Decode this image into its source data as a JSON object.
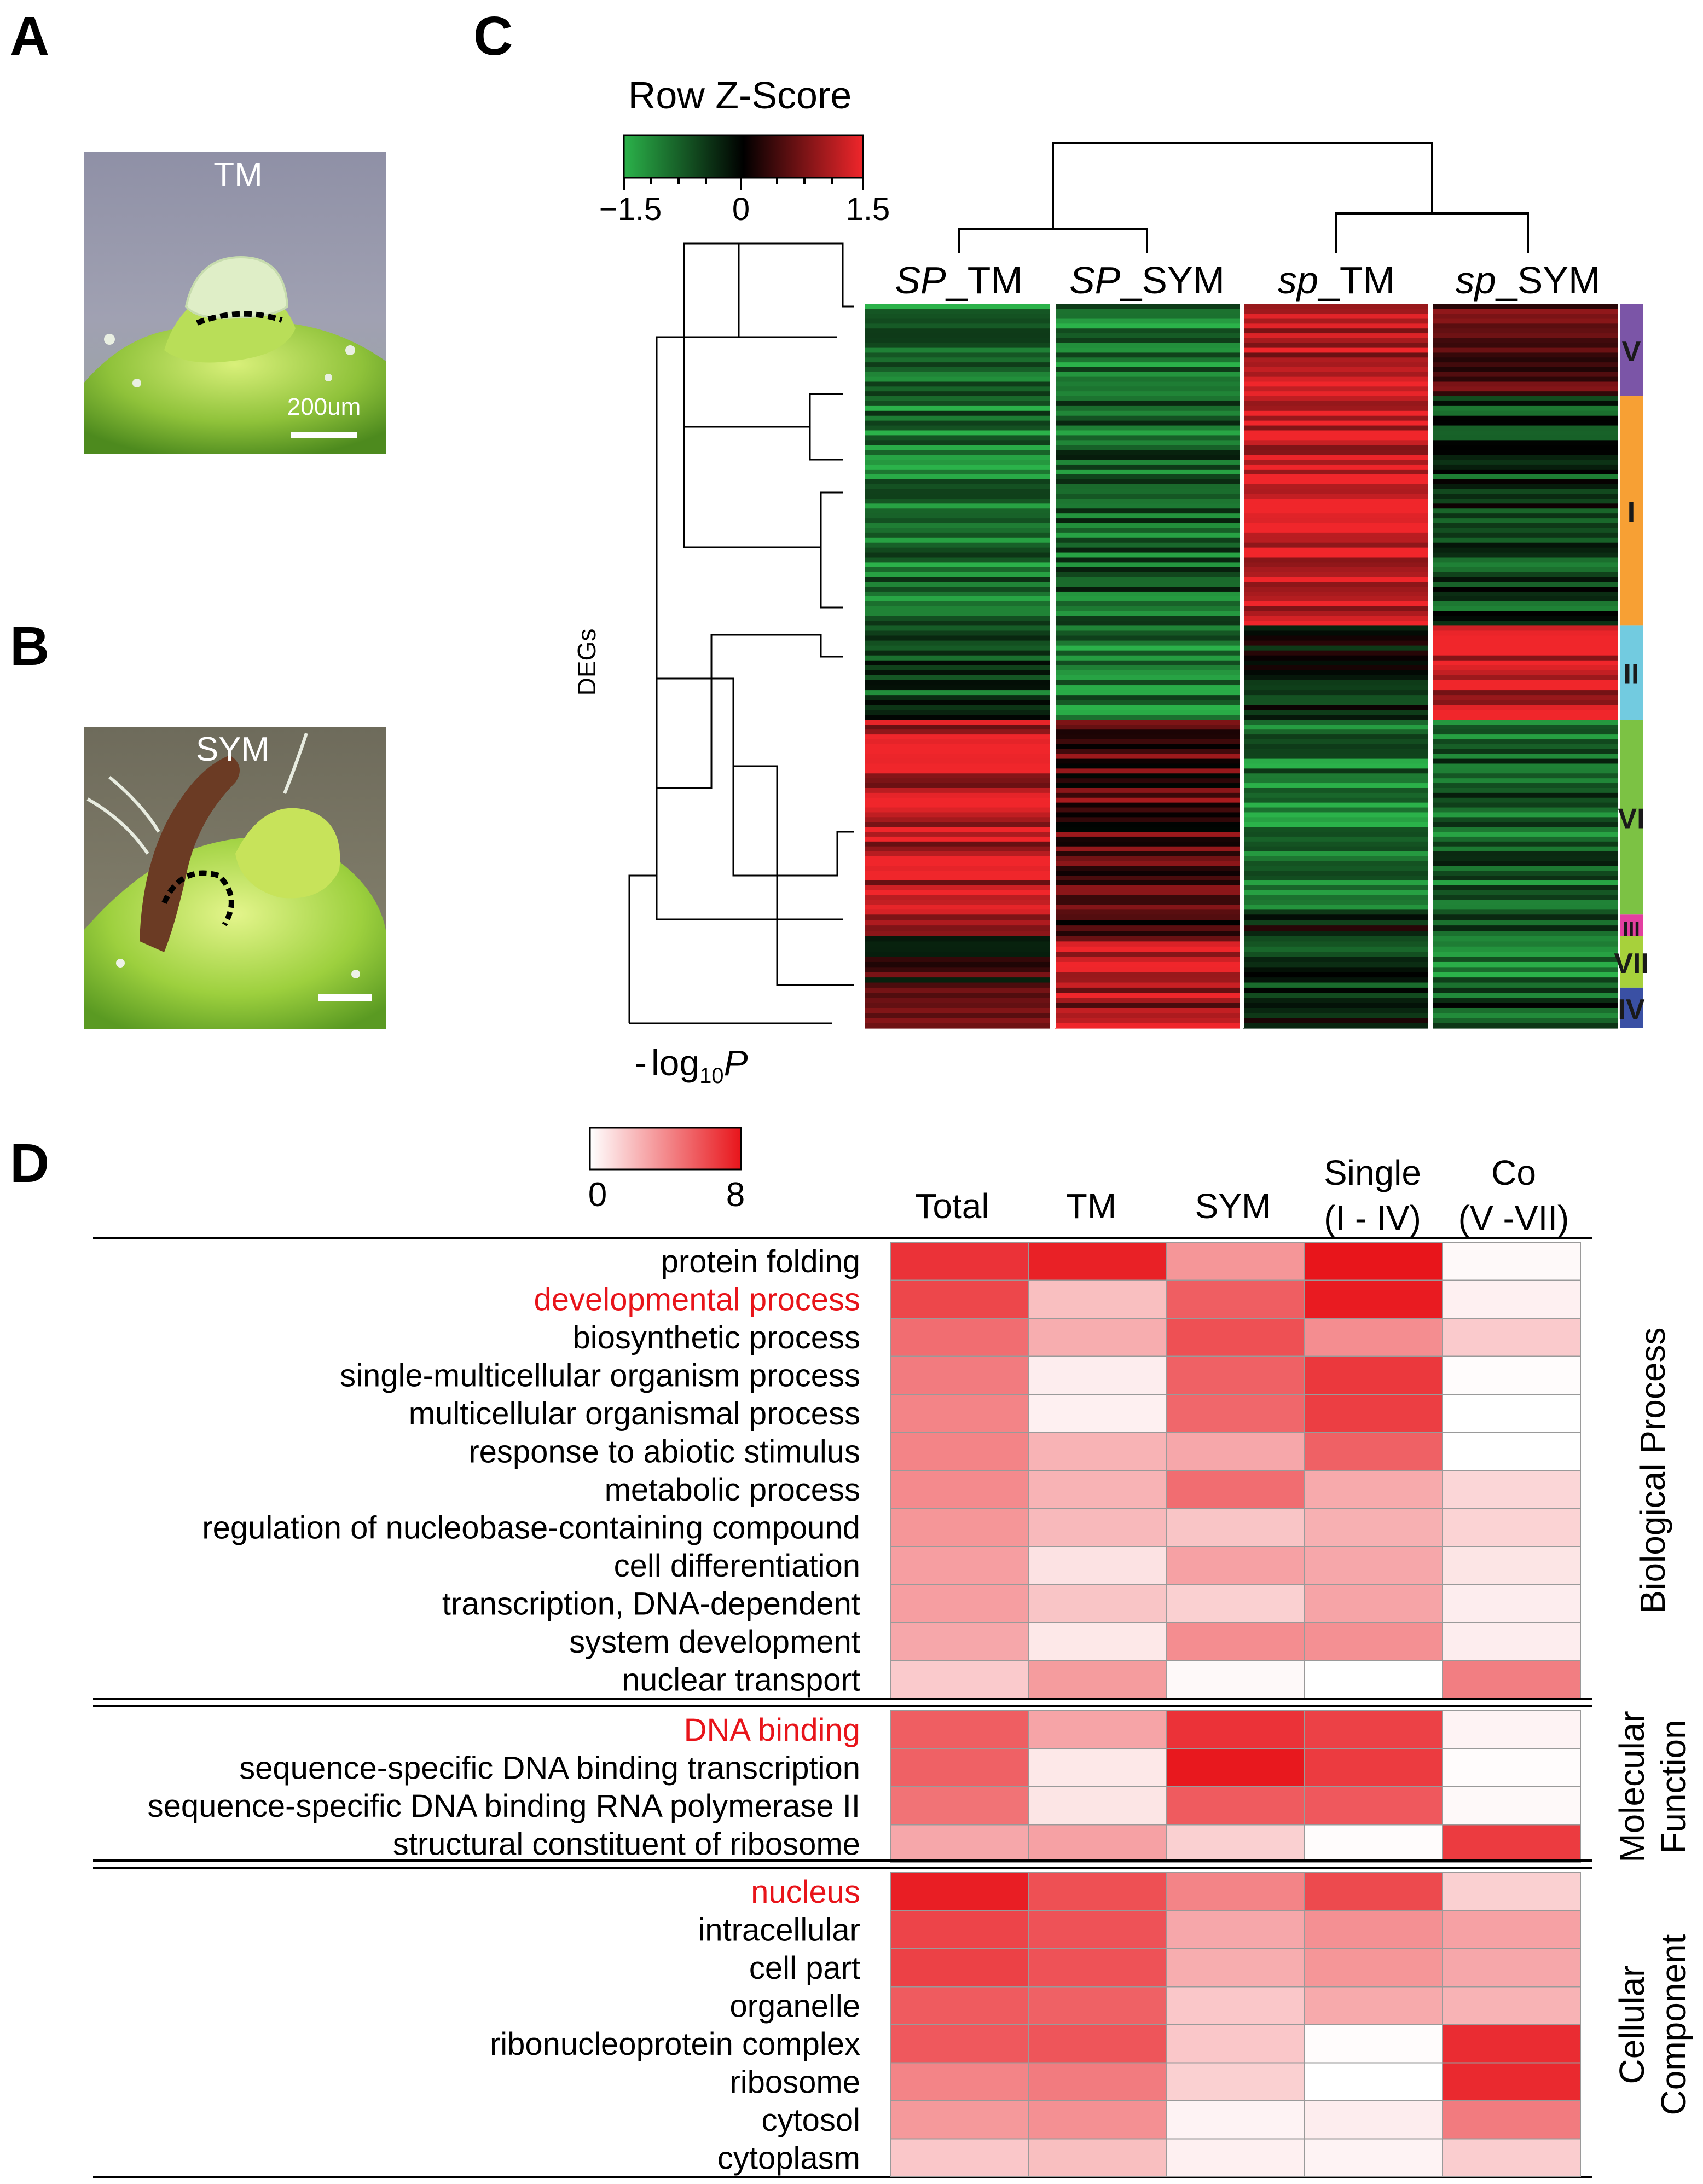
{
  "panel_labels": {
    "a": "A",
    "b": "B",
    "c": "C",
    "d": "D"
  },
  "panel_a": {
    "label": "TM",
    "scale_text": "200um"
  },
  "panel_b": {
    "label": "SYM"
  },
  "panel_c": {
    "colorkey_title": "Row Z-Score",
    "colorkey_ticks": [
      "−1.5",
      "0",
      "1.5"
    ],
    "y_axis_label": "DEGs",
    "columns": [
      {
        "prefix": "SP",
        "suffix": "_TM"
      },
      {
        "prefix": "SP",
        "suffix": "_SYM"
      },
      {
        "prefix": "sp",
        "suffix": "_TM"
      },
      {
        "prefix": "sp",
        "suffix": "_SYM"
      }
    ],
    "clusters": [
      {
        "name": "V",
        "color": "#7b55a7",
        "start": 0.0,
        "end": 0.127
      },
      {
        "name": "I",
        "color": "#f7a034",
        "start": 0.127,
        "end": 0.444
      },
      {
        "name": "II",
        "color": "#72cbe0",
        "start": 0.444,
        "end": 0.574
      },
      {
        "name": "VI",
        "color": "#7cc244",
        "start": 0.574,
        "end": 0.843
      },
      {
        "name": "III",
        "color": "#e33fa0",
        "start": 0.843,
        "end": 0.873
      },
      {
        "name": "VII",
        "color": "#a7d13b",
        "start": 0.873,
        "end": 0.944
      },
      {
        "name": "IV",
        "color": "#3a50a4",
        "start": 0.944,
        "end": 1.0
      }
    ],
    "cluster_zscores": [
      {
        "name": "V",
        "values": [
          -1.0,
          -1.0,
          1.2,
          0.6
        ]
      },
      {
        "name": "I",
        "values": [
          -1.0,
          -0.8,
          1.4,
          -0.5
        ]
      },
      {
        "name": "II",
        "values": [
          -0.6,
          -1.0,
          -0.3,
          1.3
        ]
      },
      {
        "name": "VI",
        "values": [
          1.2,
          0.5,
          -1.0,
          -0.8
        ]
      },
      {
        "name": "III",
        "values": [
          1.0,
          0.4,
          -0.2,
          -0.5
        ]
      },
      {
        "name": "VII",
        "values": [
          0.2,
          1.2,
          -0.6,
          -1.0
        ]
      },
      {
        "name": "IV",
        "values": [
          0.4,
          1.0,
          -0.4,
          -0.6
        ]
      }
    ]
  },
  "chart_data": {
    "type": "heatmap",
    "title": "-log10P",
    "colorbar_min": "0",
    "colorbar_max": "8",
    "columns": [
      {
        "line1": "Total",
        "line2": ""
      },
      {
        "line1": "TM",
        "line2": ""
      },
      {
        "line1": "SYM",
        "line2": ""
      },
      {
        "line1": "Single",
        "line2": "(I - IV)"
      },
      {
        "line1": "Co",
        "line2": "(V -VII)"
      }
    ],
    "sections": [
      {
        "name_lines": [
          "Biological Process"
        ],
        "rows": [
          {
            "term": "protein folding",
            "highlight": false,
            "values": [
              7.0,
              7.6,
              3.6,
              8.0,
              0.2
            ]
          },
          {
            "term": "developmental process",
            "highlight": true,
            "values": [
              6.3,
              2.2,
              5.5,
              7.8,
              0.5
            ]
          },
          {
            "term": "biosynthetic process",
            "highlight": false,
            "values": [
              5.0,
              2.8,
              6.0,
              3.9,
              1.8
            ]
          },
          {
            "term": "single-multicellular organism process",
            "highlight": false,
            "values": [
              4.5,
              0.6,
              5.4,
              6.8,
              0.1
            ]
          },
          {
            "term": "multicellular organismal process",
            "highlight": false,
            "values": [
              4.2,
              0.5,
              5.2,
              6.6,
              0.0
            ]
          },
          {
            "term": "response to abiotic stimulus",
            "highlight": false,
            "values": [
              4.2,
              2.6,
              3.0,
              5.4,
              0.0
            ]
          },
          {
            "term": "metabolic process",
            "highlight": false,
            "values": [
              4.0,
              2.6,
              5.0,
              2.9,
              1.4
            ]
          },
          {
            "term": "regulation of nucleobase-containing compound",
            "highlight": false,
            "values": [
              3.6,
              2.4,
              2.0,
              2.7,
              1.5
            ]
          },
          {
            "term": "cell differentiation",
            "highlight": false,
            "values": [
              3.3,
              1.0,
              3.2,
              3.0,
              0.9
            ]
          },
          {
            "term": "transcription, DNA-dependent",
            "highlight": false,
            "values": [
              3.3,
              2.0,
              1.6,
              3.1,
              0.6
            ]
          },
          {
            "term": "system development",
            "highlight": false,
            "values": [
              3.0,
              0.8,
              3.9,
              3.8,
              0.6
            ]
          },
          {
            "term": "nuclear transport",
            "highlight": false,
            "values": [
              1.8,
              3.4,
              0.2,
              0.0,
              4.4
            ]
          }
        ]
      },
      {
        "name_lines": [
          "Molecular",
          "Function"
        ],
        "rows": [
          {
            "term": "DNA binding",
            "highlight": true,
            "values": [
              5.5,
              3.1,
              7.0,
              6.5,
              0.4
            ]
          },
          {
            "term": "sequence-specific DNA binding transcription",
            "highlight": false,
            "values": [
              5.4,
              0.8,
              7.9,
              6.7,
              0.1
            ]
          },
          {
            "term": "sequence-specific DNA binding RNA polymerase II",
            "highlight": false,
            "values": [
              4.8,
              0.9,
              5.6,
              5.7,
              0.2
            ]
          },
          {
            "term": "structural constituent of ribosome",
            "highlight": false,
            "values": [
              3.0,
              3.2,
              1.6,
              0.1,
              6.7
            ]
          }
        ]
      },
      {
        "name_lines": [
          "Cellular",
          "Component"
        ],
        "rows": [
          {
            "term": "nucleus",
            "highlight": true,
            "values": [
              7.7,
              6.0,
              4.2,
              6.2,
              1.6
            ]
          },
          {
            "term": "intracellular",
            "highlight": false,
            "values": [
              6.4,
              5.9,
              3.0,
              3.8,
              3.2
            ]
          },
          {
            "term": "cell part",
            "highlight": false,
            "values": [
              6.5,
              5.9,
              2.8,
              3.6,
              3.0
            ]
          },
          {
            "term": "organelle",
            "highlight": false,
            "values": [
              5.6,
              5.4,
              1.9,
              2.9,
              2.6
            ]
          },
          {
            "term": "ribonucleoprotein complex",
            "highlight": false,
            "values": [
              5.7,
              5.8,
              1.9,
              0.1,
              7.2
            ]
          },
          {
            "term": "ribosome",
            "highlight": false,
            "values": [
              4.2,
              4.5,
              1.6,
              0.0,
              7.3
            ]
          },
          {
            "term": "cytosol",
            "highlight": false,
            "values": [
              3.5,
              3.8,
              0.4,
              0.6,
              4.5
            ]
          },
          {
            "term": "cytoplasm",
            "highlight": false,
            "values": [
              1.9,
              2.2,
              0.5,
              0.4,
              1.7
            ]
          }
        ]
      }
    ]
  },
  "colors": {
    "highlight_text": "#e8141a",
    "heat_max": "#e8151b",
    "heat_min": "#ffffff",
    "z_low": "#2bb24a",
    "z_mid": "#000000",
    "z_high": "#f0262b"
  }
}
